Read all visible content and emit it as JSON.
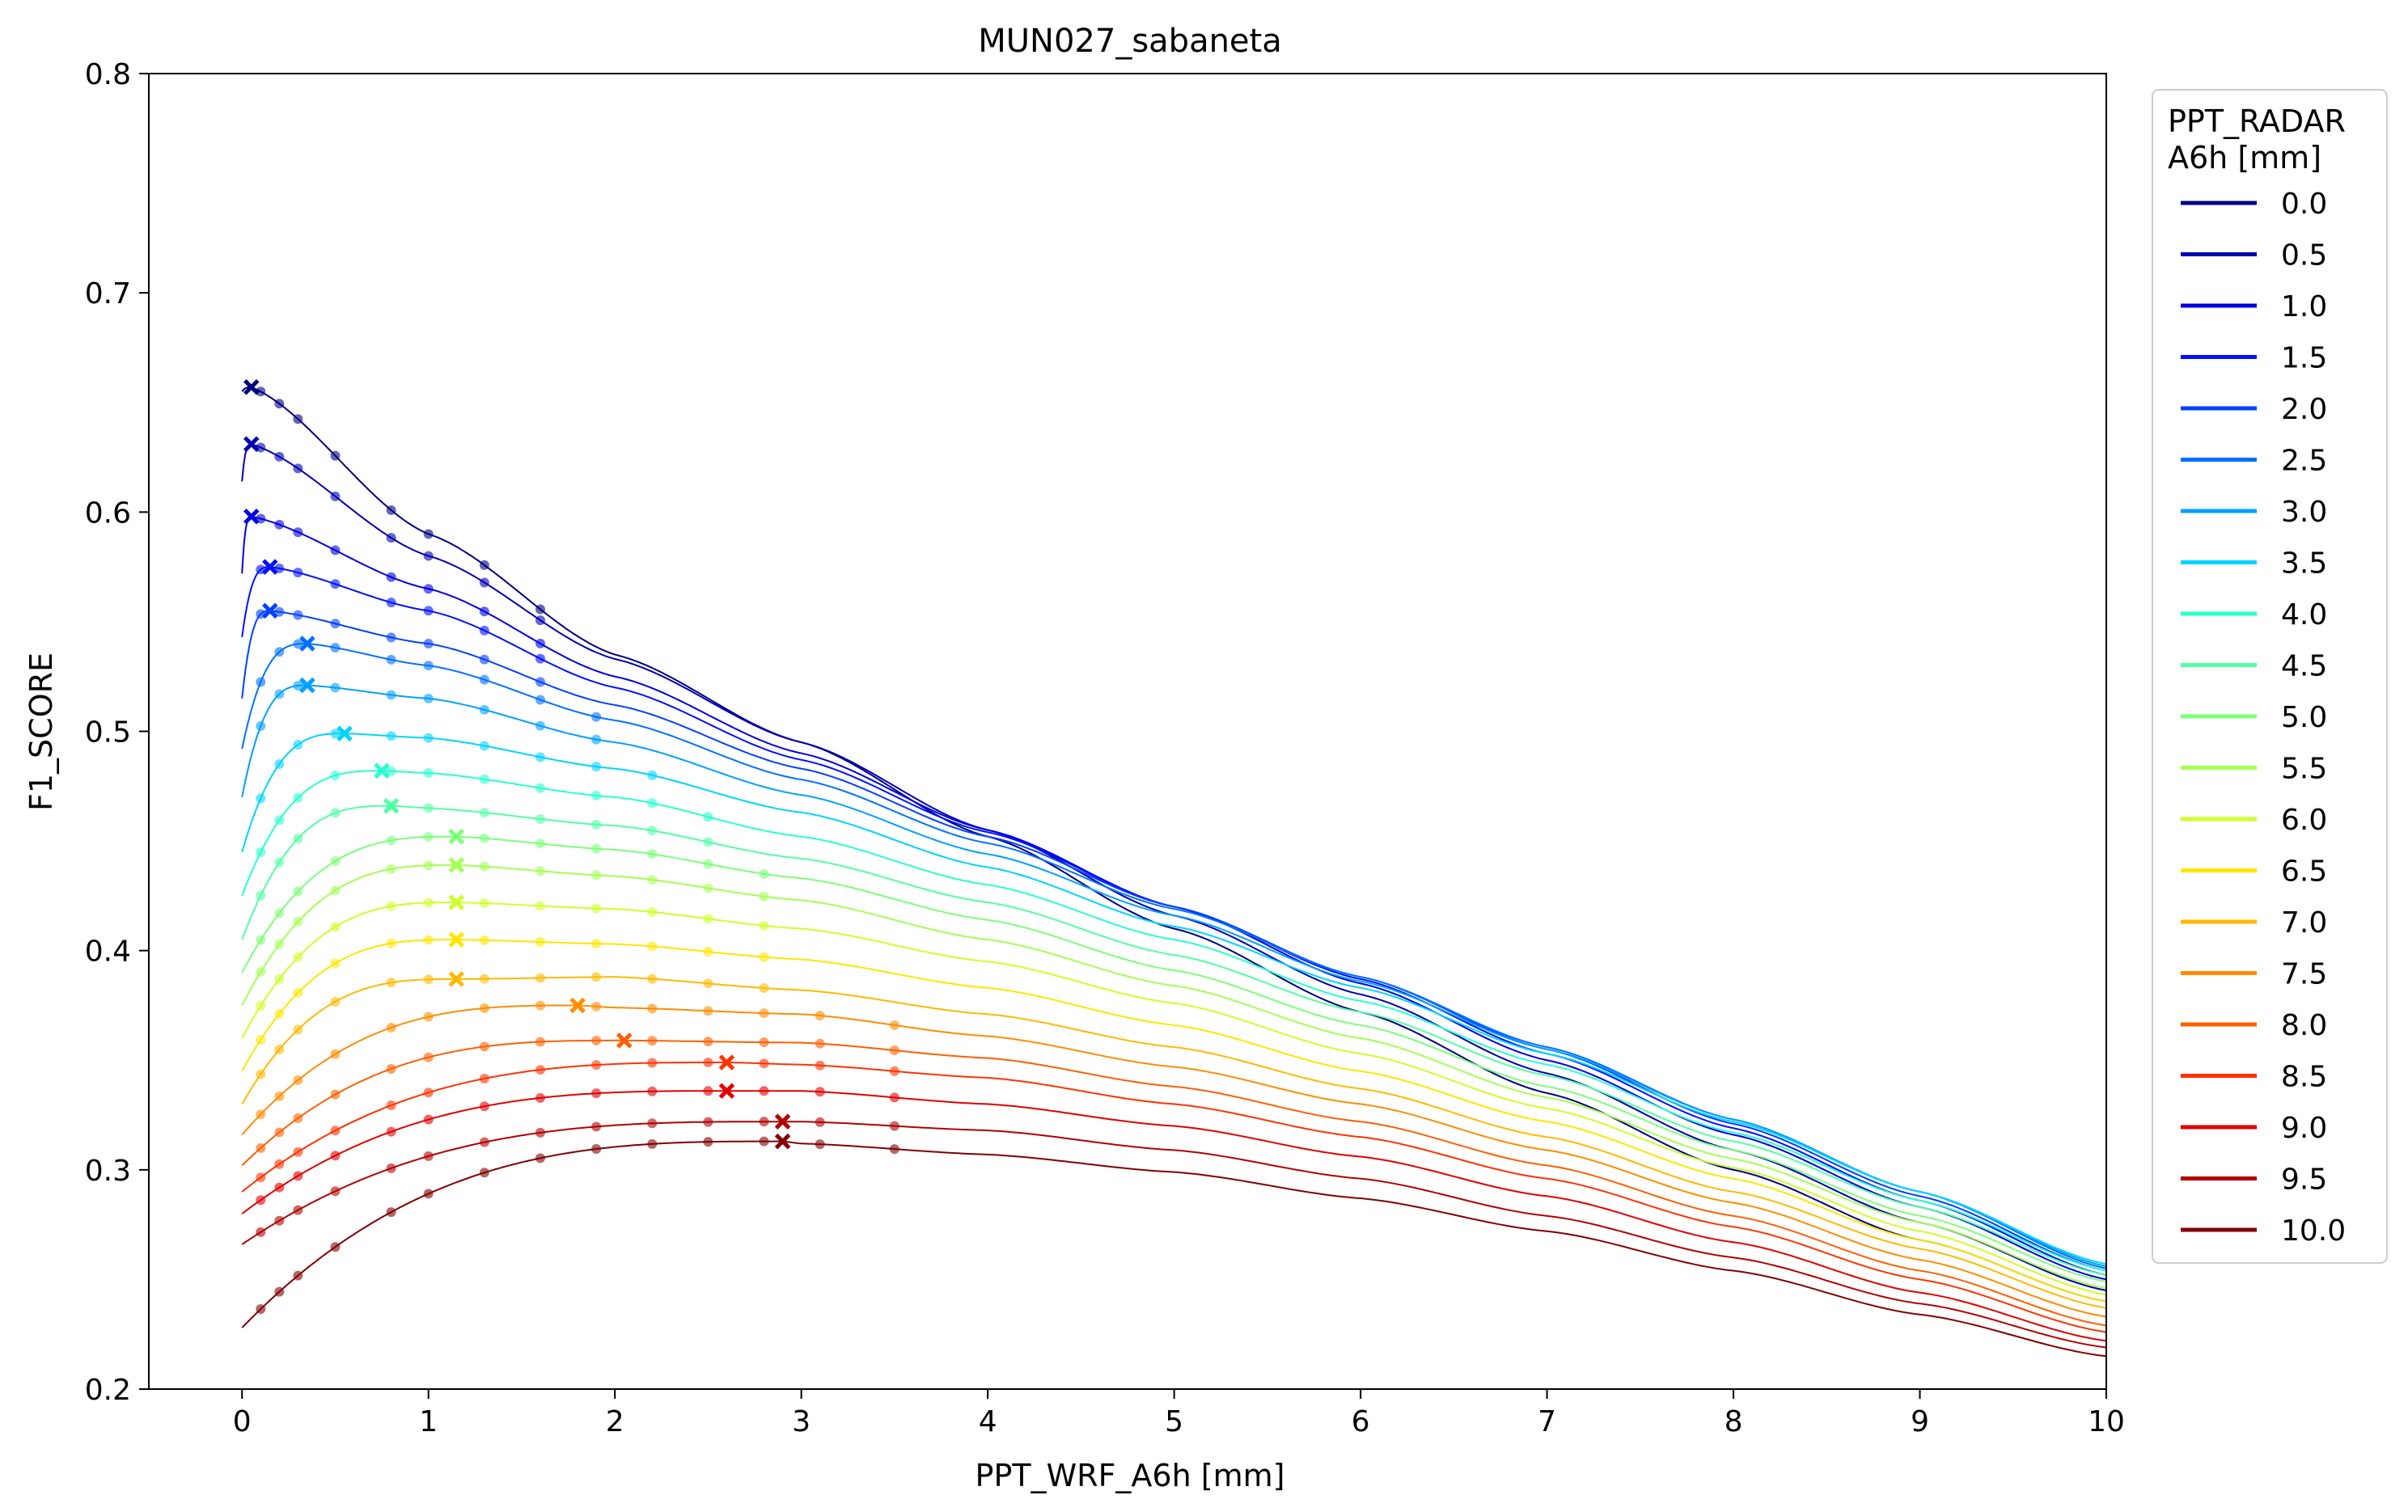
{
  "chart_data": {
    "type": "line",
    "title": "MUN027_sabaneta",
    "xlabel": "PPT_WRF_A6h [mm]",
    "ylabel": "F1_SCORE",
    "xlim": [
      -0.5,
      10
    ],
    "ylim": [
      0.2,
      0.8
    ],
    "xticks": [
      0,
      1,
      2,
      3,
      4,
      5,
      6,
      7,
      8,
      9,
      10
    ],
    "yticks": [
      0.2,
      0.3,
      0.4,
      0.5,
      0.6,
      0.7,
      0.8
    ],
    "xtick_labels": [
      "0",
      "1",
      "2",
      "3",
      "4",
      "5",
      "6",
      "7",
      "8",
      "9",
      "10"
    ],
    "ytick_labels": [
      "0.2",
      "0.3",
      "0.4",
      "0.5",
      "0.6",
      "0.7",
      "0.8"
    ],
    "grid": false,
    "legend": {
      "title_line1": "PPT_RADAR",
      "title_line2": "A6h [mm]",
      "placement": "outside-right"
    },
    "series": [
      {
        "name": "0.0",
        "color": "#000080",
        "start_y": 0.655,
        "peak_x": 0.05,
        "peak_y": 0.657,
        "end_y": 0.24,
        "mid": [
          [
            1,
            0.59
          ],
          [
            2,
            0.535
          ],
          [
            3,
            0.495
          ],
          [
            4,
            0.452
          ],
          [
            5,
            0.41
          ],
          [
            6,
            0.372
          ],
          [
            7,
            0.335
          ],
          [
            8,
            0.3
          ],
          [
            9,
            0.268
          ]
        ]
      },
      {
        "name": "0.5",
        "color": "#0000b0",
        "start_y": 0.614,
        "peak_x": 0.05,
        "peak_y": 0.631,
        "end_y": 0.245,
        "mid": [
          [
            1,
            0.58
          ],
          [
            2,
            0.533
          ],
          [
            3,
            0.495
          ],
          [
            4,
            0.455
          ],
          [
            5,
            0.416
          ],
          [
            6,
            0.38
          ],
          [
            7,
            0.344
          ],
          [
            8,
            0.309
          ],
          [
            9,
            0.276
          ]
        ]
      },
      {
        "name": "1.0",
        "color": "#0000e0",
        "start_y": 0.572,
        "peak_x": 0.05,
        "peak_y": 0.598,
        "end_y": 0.25,
        "mid": [
          [
            1,
            0.565
          ],
          [
            2,
            0.525
          ],
          [
            3,
            0.49
          ],
          [
            4,
            0.455
          ],
          [
            5,
            0.42
          ],
          [
            6,
            0.385
          ],
          [
            7,
            0.35
          ],
          [
            8,
            0.316
          ],
          [
            9,
            0.283
          ]
        ]
      },
      {
        "name": "1.5",
        "color": "#0010ff",
        "start_y": 0.543,
        "peak_x": 0.15,
        "peak_y": 0.575,
        "end_y": 0.252,
        "mid": [
          [
            1,
            0.555
          ],
          [
            2,
            0.52
          ],
          [
            3,
            0.487
          ],
          [
            4,
            0.454
          ],
          [
            5,
            0.42
          ],
          [
            6,
            0.387
          ],
          [
            7,
            0.353
          ],
          [
            8,
            0.319
          ],
          [
            9,
            0.286
          ]
        ]
      },
      {
        "name": "2.0",
        "color": "#0040ff",
        "start_y": 0.515,
        "peak_x": 0.15,
        "peak_y": 0.555,
        "end_y": 0.254,
        "mid": [
          [
            1,
            0.54
          ],
          [
            2,
            0.512
          ],
          [
            3,
            0.483
          ],
          [
            4,
            0.452
          ],
          [
            5,
            0.42
          ],
          [
            6,
            0.388
          ],
          [
            7,
            0.355
          ],
          [
            8,
            0.321
          ],
          [
            9,
            0.288
          ]
        ]
      },
      {
        "name": "2.5",
        "color": "#0070ff",
        "start_y": 0.492,
        "peak_x": 0.35,
        "peak_y": 0.54,
        "end_y": 0.255,
        "mid": [
          [
            1,
            0.53
          ],
          [
            2,
            0.505
          ],
          [
            3,
            0.478
          ],
          [
            4,
            0.449
          ],
          [
            5,
            0.419
          ],
          [
            6,
            0.388
          ],
          [
            7,
            0.356
          ],
          [
            8,
            0.323
          ],
          [
            9,
            0.29
          ]
        ]
      },
      {
        "name": "3.0",
        "color": "#00a0ff",
        "start_y": 0.47,
        "peak_x": 0.35,
        "peak_y": 0.521,
        "end_y": 0.256,
        "mid": [
          [
            1,
            0.515
          ],
          [
            2,
            0.495
          ],
          [
            3,
            0.471
          ],
          [
            4,
            0.444
          ],
          [
            5,
            0.416
          ],
          [
            6,
            0.386
          ],
          [
            7,
            0.355
          ],
          [
            8,
            0.323
          ],
          [
            9,
            0.29
          ]
        ]
      },
      {
        "name": "3.5",
        "color": "#00d4ff",
        "start_y": 0.445,
        "peak_x": 0.55,
        "peak_y": 0.499,
        "end_y": 0.257,
        "mid": [
          [
            1,
            0.497
          ],
          [
            2,
            0.483
          ],
          [
            3,
            0.463
          ],
          [
            4,
            0.438
          ],
          [
            5,
            0.411
          ],
          [
            6,
            0.383
          ],
          [
            7,
            0.353
          ],
          [
            8,
            0.322
          ],
          [
            9,
            0.29
          ]
        ]
      },
      {
        "name": "4.0",
        "color": "#29ffce",
        "start_y": 0.425,
        "peak_x": 0.75,
        "peak_y": 0.482,
        "end_y": 0.254,
        "mid": [
          [
            1,
            0.481
          ],
          [
            2,
            0.47
          ],
          [
            3,
            0.452
          ],
          [
            4,
            0.43
          ],
          [
            5,
            0.405
          ],
          [
            6,
            0.377
          ],
          [
            7,
            0.348
          ],
          [
            8,
            0.317
          ],
          [
            9,
            0.286
          ]
        ]
      },
      {
        "name": "4.5",
        "color": "#53ffa4",
        "start_y": 0.405,
        "peak_x": 0.8,
        "peak_y": 0.466,
        "end_y": 0.252,
        "mid": [
          [
            1,
            0.465
          ],
          [
            2,
            0.457
          ],
          [
            3,
            0.442
          ],
          [
            4,
            0.422
          ],
          [
            5,
            0.398
          ],
          [
            6,
            0.372
          ],
          [
            7,
            0.343
          ],
          [
            8,
            0.313
          ],
          [
            9,
            0.283
          ]
        ]
      },
      {
        "name": "5.0",
        "color": "#7dff7a",
        "start_y": 0.39,
        "peak_x": 1.15,
        "peak_y": 0.452,
        "end_y": 0.249,
        "mid": [
          [
            1,
            0.451
          ],
          [
            2,
            0.446
          ],
          [
            3,
            0.433
          ],
          [
            4,
            0.414
          ],
          [
            5,
            0.391
          ],
          [
            6,
            0.366
          ],
          [
            7,
            0.338
          ],
          [
            8,
            0.309
          ],
          [
            9,
            0.279
          ]
        ]
      },
      {
        "name": "5.5",
        "color": "#a4ff53",
        "start_y": 0.375,
        "peak_x": 1.15,
        "peak_y": 0.439,
        "end_y": 0.246,
        "mid": [
          [
            1,
            0.437
          ],
          [
            2,
            0.434
          ],
          [
            3,
            0.423
          ],
          [
            4,
            0.405
          ],
          [
            5,
            0.384
          ],
          [
            6,
            0.36
          ],
          [
            7,
            0.333
          ],
          [
            8,
            0.305
          ],
          [
            9,
            0.276
          ]
        ]
      },
      {
        "name": "6.0",
        "color": "#ceff29",
        "start_y": 0.36,
        "peak_x": 1.15,
        "peak_y": 0.422,
        "end_y": 0.243,
        "mid": [
          [
            1,
            0.421
          ],
          [
            2,
            0.419
          ],
          [
            3,
            0.41
          ],
          [
            4,
            0.395
          ],
          [
            5,
            0.376
          ],
          [
            6,
            0.353
          ],
          [
            7,
            0.328
          ],
          [
            8,
            0.301
          ],
          [
            9,
            0.272
          ]
        ]
      },
      {
        "name": "6.5",
        "color": "#ffe600",
        "start_y": 0.345,
        "peak_x": 1.15,
        "peak_y": 0.405,
        "end_y": 0.24,
        "mid": [
          [
            1,
            0.404
          ],
          [
            2,
            0.403
          ],
          [
            3,
            0.396
          ],
          [
            4,
            0.383
          ],
          [
            5,
            0.366
          ],
          [
            6,
            0.345
          ],
          [
            7,
            0.322
          ],
          [
            8,
            0.296
          ],
          [
            9,
            0.268
          ]
        ]
      },
      {
        "name": "7.0",
        "color": "#ffb900",
        "start_y": 0.33,
        "peak_x": 1.15,
        "peak_y": 0.387,
        "end_y": 0.237,
        "mid": [
          [
            1,
            0.386
          ],
          [
            2,
            0.388
          ],
          [
            3,
            0.382
          ],
          [
            4,
            0.371
          ],
          [
            5,
            0.356
          ],
          [
            6,
            0.337
          ],
          [
            7,
            0.315
          ],
          [
            8,
            0.29
          ],
          [
            9,
            0.264
          ]
        ]
      },
      {
        "name": "7.5",
        "color": "#ff8c00",
        "start_y": 0.316,
        "peak_x": 1.8,
        "peak_y": 0.375,
        "end_y": 0.233,
        "mid": [
          [
            1,
            0.37
          ],
          [
            2,
            0.374
          ],
          [
            3,
            0.371
          ],
          [
            4,
            0.361
          ],
          [
            5,
            0.347
          ],
          [
            6,
            0.33
          ],
          [
            7,
            0.309
          ],
          [
            8,
            0.285
          ],
          [
            9,
            0.259
          ]
        ]
      },
      {
        "name": "8.0",
        "color": "#ff5f00",
        "start_y": 0.302,
        "peak_x": 2.05,
        "peak_y": 0.359,
        "end_y": 0.229,
        "mid": [
          [
            1,
            0.354
          ],
          [
            2,
            0.359
          ],
          [
            3,
            0.358
          ],
          [
            4,
            0.351
          ],
          [
            5,
            0.338
          ],
          [
            6,
            0.322
          ],
          [
            7,
            0.302
          ],
          [
            8,
            0.279
          ],
          [
            9,
            0.254
          ]
        ]
      },
      {
        "name": "8.5",
        "color": "#ff3200",
        "start_y": 0.29,
        "peak_x": 2.6,
        "peak_y": 0.349,
        "end_y": 0.226,
        "mid": [
          [
            1,
            0.342
          ],
          [
            2,
            0.348
          ],
          [
            3,
            0.348
          ],
          [
            4,
            0.342
          ],
          [
            5,
            0.33
          ],
          [
            6,
            0.315
          ],
          [
            7,
            0.296
          ],
          [
            8,
            0.274
          ],
          [
            9,
            0.25
          ]
        ]
      },
      {
        "name": "9.0",
        "color": "#e10000",
        "start_y": 0.28,
        "peak_x": 2.6,
        "peak_y": 0.336,
        "end_y": 0.222,
        "mid": [
          [
            1,
            0.33
          ],
          [
            2,
            0.336
          ],
          [
            3,
            0.336
          ],
          [
            4,
            0.33
          ],
          [
            5,
            0.32
          ],
          [
            6,
            0.306
          ],
          [
            7,
            0.288
          ],
          [
            8,
            0.267
          ],
          [
            9,
            0.244
          ]
        ]
      },
      {
        "name": "9.5",
        "color": "#b20000",
        "start_y": 0.266,
        "peak_x": 2.9,
        "peak_y": 0.322,
        "end_y": 0.219,
        "mid": [
          [
            1,
            0.315
          ],
          [
            2,
            0.321
          ],
          [
            3,
            0.322
          ],
          [
            4,
            0.318
          ],
          [
            5,
            0.309
          ],
          [
            6,
            0.296
          ],
          [
            7,
            0.279
          ],
          [
            8,
            0.26
          ],
          [
            9,
            0.239
          ]
        ]
      },
      {
        "name": "10.0",
        "color": "#800000",
        "start_y": 0.228,
        "peak_x": 2.9,
        "peak_y": 0.313,
        "end_y": 0.215,
        "mid": [
          [
            1,
            0.304
          ],
          [
            2,
            0.311
          ],
          [
            3,
            0.312
          ],
          [
            4,
            0.307
          ],
          [
            5,
            0.299
          ],
          [
            6,
            0.287
          ],
          [
            7,
            0.272
          ],
          [
            8,
            0.254
          ],
          [
            9,
            0.234
          ]
        ]
      }
    ]
  }
}
